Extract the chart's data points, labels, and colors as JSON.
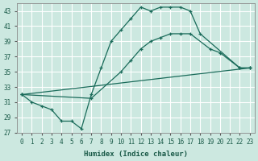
{
  "xlabel": "Humidex (Indice chaleur)",
  "xlim": [
    -0.5,
    23.5
  ],
  "ylim": [
    27,
    44
  ],
  "yticks": [
    27,
    29,
    31,
    33,
    35,
    37,
    39,
    41,
    43
  ],
  "xticks": [
    0,
    1,
    2,
    3,
    4,
    5,
    6,
    7,
    8,
    9,
    10,
    11,
    12,
    13,
    14,
    15,
    16,
    17,
    18,
    19,
    20,
    21,
    22,
    23
  ],
  "bg_color": "#cce8e0",
  "grid_color": "#ffffff",
  "line_color": "#1a6b5a",
  "line1_x": [
    0,
    1,
    2,
    3,
    4,
    5,
    6,
    7,
    8,
    9,
    10,
    11,
    12,
    13,
    14,
    15,
    16,
    17,
    18,
    22,
    23
  ],
  "line1_y": [
    32,
    31,
    30.5,
    30,
    28.5,
    28.5,
    27.5,
    32,
    35.5,
    39,
    40.5,
    42,
    43.5,
    43,
    43.5,
    43.5,
    43.5,
    43,
    40,
    35.5,
    35.5
  ],
  "line2_x": [
    0,
    7,
    10,
    11,
    12,
    13,
    14,
    15,
    16,
    17,
    19,
    20,
    22,
    23
  ],
  "line2_y": [
    32,
    31.5,
    35,
    36.5,
    38,
    39,
    39.5,
    40,
    40,
    40,
    38,
    37.5,
    35.5,
    35.5
  ],
  "line3_x": [
    0,
    23
  ],
  "line3_y": [
    32,
    35.5
  ]
}
